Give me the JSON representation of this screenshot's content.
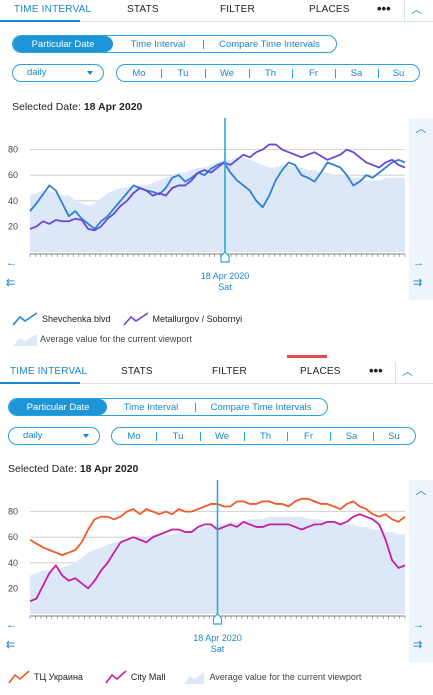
{
  "colors": {
    "accent": "#1a86c8",
    "accent_fill": "#1e95d6",
    "average_fill": "#dce8f7",
    "marker": "#2aa8d8",
    "series_blue": "#2f7fd6",
    "series_purple": "#6b46d6",
    "series_red": "#f05a28",
    "series_magenta": "#c21ea8"
  },
  "icons": {
    "more": "more-dots-icon",
    "collapse": "chevron-up-icon",
    "scroll_left": "arrow-left-icon",
    "scroll_start": "arrow-double-left-icon",
    "scroll_right": "arrow-right-icon",
    "scroll_end": "arrow-double-right-icon",
    "scroll_up": "chevron-up-icon"
  },
  "panels": [
    {
      "tabs": [
        "TIME INTERVAL",
        "STATS",
        "FILTER",
        "PLACES"
      ],
      "active_tab": "TIME INTERVAL",
      "more_label": "•••",
      "date_modes": [
        "Particular Date",
        "Time Interval",
        "Compare Time Intervals"
      ],
      "active_mode": "Particular Date",
      "period_select": "daily",
      "weekdays": [
        "Mo",
        "Tu",
        "We",
        "Th",
        "Fr",
        "Sa",
        "Su"
      ],
      "selected_date_label": "Selected Date:",
      "selected_date_value": "18 Apr 2020",
      "marker_date": "18 Apr 2020",
      "marker_day": "Sat",
      "legend_note": "Average value for the current viewport",
      "chart_data": {
        "type": "line",
        "ylim": [
          0,
          100
        ],
        "y_ticks": [
          20,
          40,
          60,
          80
        ],
        "marker_x": 0.52,
        "series": [
          {
            "name": "Shevchenka blvd",
            "color": "#2f7fd6",
            "values": [
              32,
              38,
              45,
              52,
              48,
              38,
              28,
              32,
              26,
              22,
              18,
              24,
              28,
              34,
              40,
              46,
              52,
              50,
              48,
              47,
              45,
              50,
              58,
              60,
              55,
              58,
              62,
              60,
              65,
              68,
              70,
              62,
              56,
              52,
              48,
              40,
              35,
              44,
              56,
              64,
              70,
              68,
              60,
              58,
              55,
              62,
              70,
              68,
              66,
              60,
              52,
              55,
              60,
              58,
              62,
              66,
              70,
              72,
              70
            ]
          },
          {
            "name": "Metallurgov / Sobornyi",
            "color": "#6b46d6",
            "values": [
              18,
              20,
              24,
              22,
              25,
              24,
              24,
              26,
              25,
              18,
              17,
              20,
              26,
              30,
              36,
              40,
              46,
              50,
              48,
              44,
              46,
              44,
              50,
              52,
              52,
              56,
              62,
              64,
              62,
              66,
              70,
              68,
              72,
              76,
              74,
              78,
              80,
              84,
              84,
              80,
              78,
              76,
              74,
              76,
              78,
              75,
              72,
              74,
              76,
              80,
              78,
              74,
              70,
              68,
              66,
              70,
              72,
              68,
              66
            ]
          }
        ],
        "average": [
          44,
          46,
          48,
          48,
          46,
          44,
          44,
          40,
          38,
          36,
          38,
          42,
          46,
          48,
          50,
          50,
          52,
          52,
          52,
          54,
          56,
          58,
          60,
          62,
          62,
          64,
          66,
          66,
          68,
          70,
          72,
          72,
          74,
          74,
          72,
          70,
          68,
          66,
          66,
          68,
          68,
          66,
          66,
          64,
          64,
          62,
          62,
          60,
          60,
          60,
          58,
          58,
          56,
          56,
          56,
          58,
          58,
          58,
          58
        ]
      },
      "legend": [
        "Shevchenka blvd",
        "Metallurgov / Sobornyi"
      ]
    },
    {
      "tabs": [
        "TIME INTERVAL",
        "STATS",
        "FILTER",
        "PLACES"
      ],
      "active_tab": "TIME INTERVAL",
      "more_label": "•••",
      "date_modes": [
        "Particular Date",
        "Time Interval",
        "Compare Time Intervals"
      ],
      "active_mode": "Particular Date",
      "period_select": "daily",
      "weekdays": [
        "Mo",
        "Tu",
        "We",
        "Th",
        "Fr",
        "Sa",
        "Su"
      ],
      "selected_date_label": "Selected Date:",
      "selected_date_value": "18 Apr 2020",
      "marker_date": "18 Apr 2020",
      "marker_day": "Sat",
      "legend_note": "Average value for the current viewport",
      "chart_data": {
        "type": "line",
        "ylim": [
          0,
          100
        ],
        "y_ticks": [
          20,
          40,
          60,
          80
        ],
        "marker_x": 0.5,
        "series": [
          {
            "name": "ТЦ Украина",
            "color": "#f05a28",
            "values": [
              58,
              55,
              52,
              50,
              48,
              46,
              48,
              50,
              56,
              66,
              74,
              76,
              76,
              74,
              76,
              80,
              82,
              78,
              82,
              80,
              78,
              80,
              78,
              82,
              80,
              80,
              82,
              84,
              86,
              86,
              84,
              84,
              88,
              88,
              86,
              86,
              88,
              88,
              86,
              86,
              84,
              88,
              90,
              90,
              88,
              86,
              86,
              84,
              82,
              86,
              88,
              84,
              82,
              78,
              76,
              78,
              74,
              72,
              76
            ]
          },
          {
            "name": "City Mall",
            "color": "#c21ea8",
            "values": [
              10,
              12,
              22,
              32,
              38,
              30,
              26,
              28,
              24,
              20,
              26,
              34,
              40,
              48,
              56,
              58,
              60,
              58,
              56,
              60,
              62,
              64,
              66,
              66,
              64,
              64,
              68,
              70,
              70,
              66,
              68,
              70,
              68,
              72,
              70,
              68,
              68,
              70,
              70,
              70,
              70,
              68,
              66,
              68,
              70,
              70,
              72,
              72,
              70,
              72,
              76,
              78,
              76,
              74,
              70,
              58,
              42,
              36,
              38
            ]
          }
        ],
        "average": [
          30,
          32,
          34,
          34,
          34,
          36,
          38,
          40,
          44,
          48,
          50,
          52,
          54,
          56,
          56,
          58,
          58,
          60,
          60,
          62,
          62,
          62,
          62,
          64,
          64,
          66,
          66,
          68,
          68,
          70,
          70,
          72,
          72,
          72,
          74,
          74,
          74,
          76,
          76,
          76,
          76,
          76,
          76,
          74,
          74,
          74,
          72,
          72,
          72,
          70,
          70,
          68,
          68,
          66,
          66,
          64,
          64,
          62,
          62
        ]
      },
      "legend": [
        "ТЦ Украина",
        "City Mall"
      ]
    }
  ]
}
